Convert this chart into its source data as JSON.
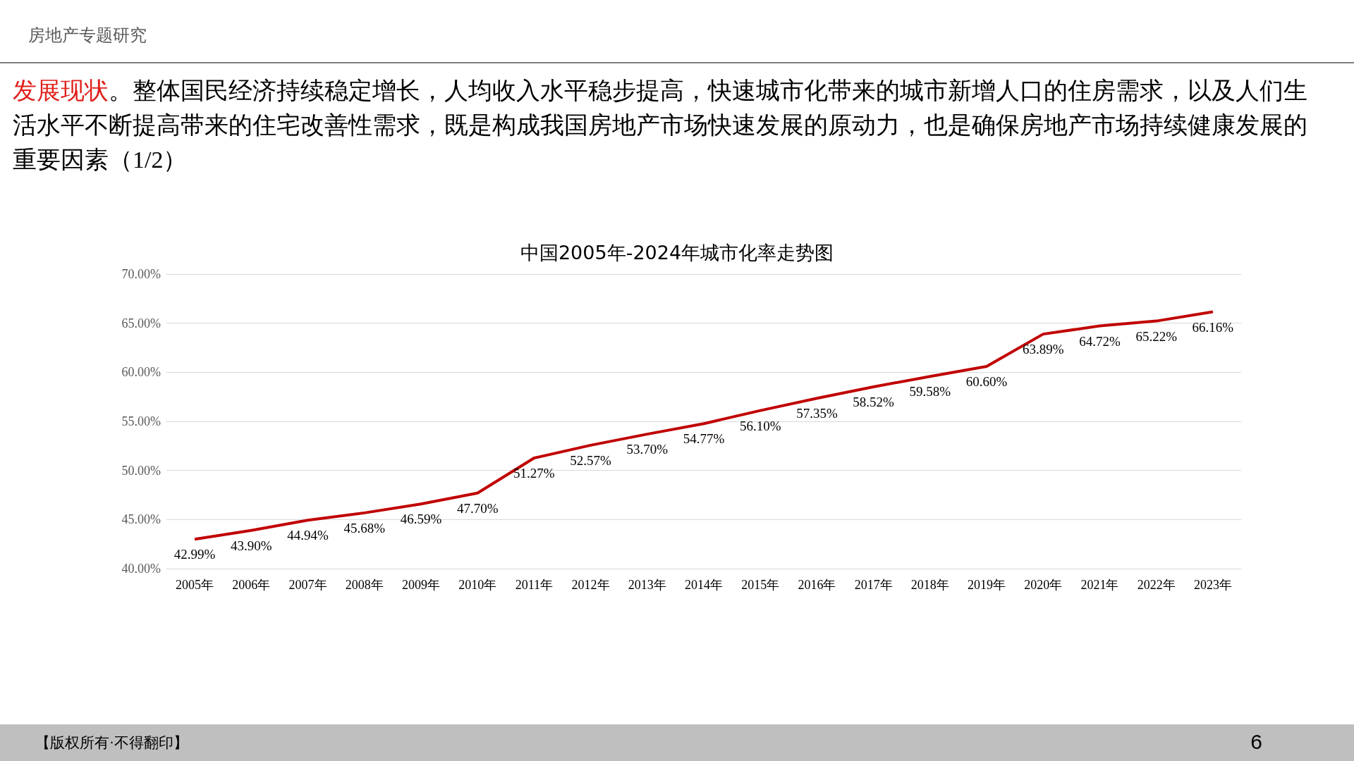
{
  "chart_data": {
    "type": "line",
    "title": "中国2005年-2024年城市化率走势图",
    "categories": [
      "2005年",
      "2006年",
      "2007年",
      "2008年",
      "2009年",
      "2010年",
      "2011年",
      "2012年",
      "2013年",
      "2014年",
      "2015年",
      "2016年",
      "2017年",
      "2018年",
      "2019年",
      "2020年",
      "2021年",
      "2022年",
      "2023年"
    ],
    "series": [
      {
        "color": "#c00000",
        "values": [
          42.99,
          43.9,
          44.94,
          45.68,
          46.59,
          47.7,
          51.27,
          52.57,
          53.7,
          54.77,
          56.1,
          57.35,
          58.52,
          59.58,
          60.6,
          63.89,
          64.72,
          65.22,
          66.16
        ],
        "value_labels": [
          "42.99%",
          "43.90%",
          "44.94%",
          "45.68%",
          "46.59%",
          "47.70%",
          "51.27%",
          "52.57%",
          "53.70%",
          "54.77%",
          "56.10%",
          "57.35%",
          "58.52%",
          "59.58%",
          "60.60%",
          "63.89%",
          "64.72%",
          "65.22%",
          "66.16%"
        ]
      }
    ],
    "ylim": [
      40,
      70
    ],
    "yticks": [
      {
        "value": 40,
        "label": "40.00%"
      },
      {
        "value": 45,
        "label": "45.00%"
      },
      {
        "value": 50,
        "label": "50.00%"
      },
      {
        "value": 55,
        "label": "55.00%"
      },
      {
        "value": 60,
        "label": "60.00%"
      },
      {
        "value": 65,
        "label": "65.00%"
      },
      {
        "value": 70,
        "label": "70.00%"
      }
    ],
    "grid": "y",
    "marker": "none",
    "line_style": "solid",
    "annotations": [
      "房地产专题研究",
      "发展现状",
      "。整体国民经济持续稳定增长，人均收入水平稳步提高，快速城市化带来的城市新增人口的住房需求，以及人们生活水平不断提高带来的住宅改善性需求，既是构成我国房地产市场快速发展的原动力，也是确保房地产市场持续健康发展的重要因素（1/2）",
      "【版权所有·不得翻印】",
      "6"
    ]
  }
}
